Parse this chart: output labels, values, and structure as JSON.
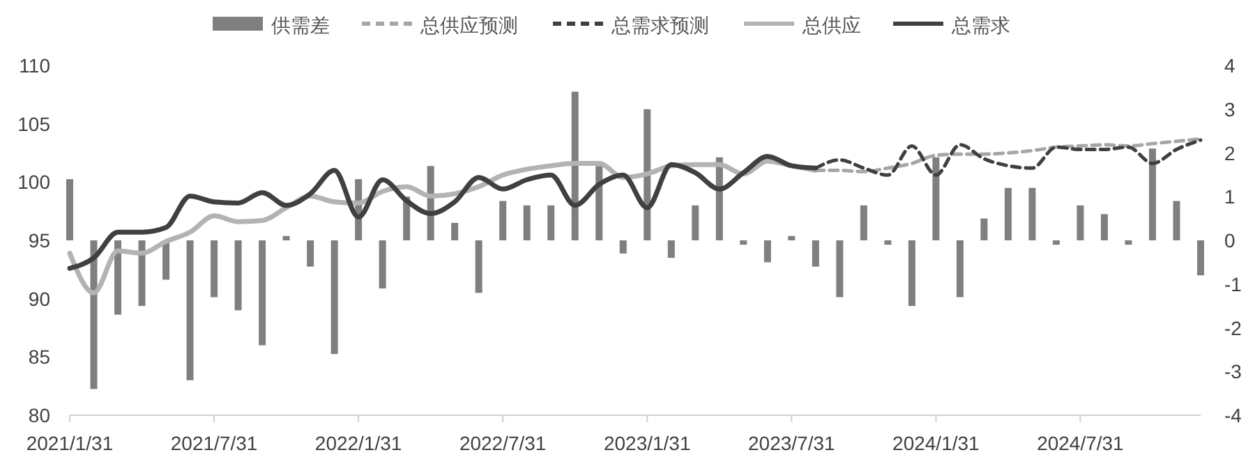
{
  "chart_data": {
    "type": "bar",
    "categories": [
      "2021/1/31",
      null,
      null,
      null,
      null,
      null,
      "2021/7/31",
      null,
      null,
      null,
      null,
      null,
      "2022/1/31",
      null,
      null,
      null,
      null,
      null,
      "2022/7/31",
      null,
      null,
      null,
      null,
      null,
      "2023/1/31",
      null,
      null,
      null,
      null,
      null,
      "2023/7/31",
      null,
      null,
      null,
      null,
      null,
      "2024/1/31",
      null,
      null,
      null,
      null,
      null,
      "2024/7/31",
      null,
      null,
      null,
      null,
      null
    ],
    "series": [
      {
        "name": "供需差",
        "axis": "y2",
        "color": "#7f7f7f",
        "values": [
          1.4,
          -3.4,
          -1.7,
          -1.5,
          -0.9,
          -3.2,
          -1.3,
          -1.6,
          -2.4,
          0.1,
          -0.6,
          -2.6,
          1.4,
          -1.1,
          1.0,
          1.7,
          0.4,
          -1.2,
          0.9,
          0.8,
          0.8,
          3.4,
          1.7,
          -0.3,
          3.0,
          -0.4,
          0.8,
          1.9,
          -0.1,
          -0.5,
          0.1,
          -0.6,
          -1.3,
          0.8,
          -0.1,
          -1.5,
          1.9,
          -1.3,
          0.5,
          1.2,
          1.2,
          -0.1,
          0.8,
          0.6,
          -0.1,
          2.1,
          0.9,
          -0.8
        ]
      },
      {
        "name": "总供应预测",
        "type": "line",
        "line_style": "dashed",
        "color": "#a6a6a6",
        "values": [
          null,
          null,
          null,
          null,
          null,
          null,
          null,
          null,
          null,
          null,
          null,
          null,
          null,
          null,
          null,
          null,
          null,
          null,
          null,
          null,
          null,
          null,
          null,
          null,
          null,
          null,
          null,
          null,
          null,
          null,
          null,
          101.0,
          101.0,
          100.9,
          101.2,
          101.6,
          102.3,
          102.4,
          102.4,
          102.5,
          102.7,
          103.0,
          103.1,
          103.2,
          103.1,
          103.3,
          103.5,
          103.7
        ]
      },
      {
        "name": "总需求预测",
        "type": "line",
        "line_style": "dashed",
        "color": "#404040",
        "values": [
          null,
          null,
          null,
          null,
          null,
          null,
          null,
          null,
          null,
          null,
          null,
          null,
          null,
          null,
          null,
          null,
          null,
          null,
          null,
          null,
          null,
          null,
          null,
          null,
          null,
          null,
          null,
          null,
          null,
          null,
          null,
          101.2,
          101.9,
          101.2,
          100.6,
          103.1,
          100.6,
          103.2,
          102.0,
          101.4,
          101.2,
          103.0,
          102.8,
          102.8,
          103.0,
          101.6,
          102.8,
          103.6
        ]
      },
      {
        "name": "总供应",
        "type": "line",
        "line_style": "solid",
        "color": "#b3b3b3",
        "values": [
          93.9,
          90.5,
          94.1,
          93.9,
          94.9,
          95.7,
          97.1,
          96.6,
          96.7,
          97.8,
          98.8,
          98.3,
          98.2,
          99.2,
          99.6,
          98.8,
          99.0,
          99.6,
          100.6,
          101.1,
          101.4,
          101.6,
          101.6,
          100.4,
          100.7,
          101.4,
          101.5,
          101.5,
          100.7,
          101.8,
          101.4,
          101.0,
          null,
          null,
          null,
          null,
          null,
          null,
          null,
          null,
          null,
          null,
          null,
          null,
          null,
          null,
          null,
          null
        ]
      },
      {
        "name": "总需求",
        "type": "line",
        "line_style": "solid",
        "color": "#404040",
        "values": [
          92.6,
          93.5,
          95.7,
          95.7,
          96.1,
          98.8,
          98.3,
          98.2,
          99.1,
          98.0,
          99.0,
          101.0,
          97.0,
          100.2,
          98.4,
          97.3,
          98.3,
          100.4,
          99.4,
          100.2,
          100.6,
          98.0,
          99.8,
          100.6,
          97.8,
          101.5,
          100.8,
          99.4,
          100.8,
          102.2,
          101.4,
          101.2,
          null,
          null,
          null,
          null,
          null,
          null,
          null,
          null,
          null,
          null,
          null,
          null,
          null,
          null,
          null,
          null
        ]
      }
    ],
    "ylim": [
      80,
      110
    ],
    "yticks": [
      80,
      85,
      90,
      95,
      100,
      105,
      110
    ],
    "y2lim": [
      -4,
      4
    ],
    "y2ticks": [
      -4,
      -3,
      -2,
      -1,
      0,
      1,
      2,
      3,
      4
    ],
    "grid": false,
    "legend": "top"
  }
}
